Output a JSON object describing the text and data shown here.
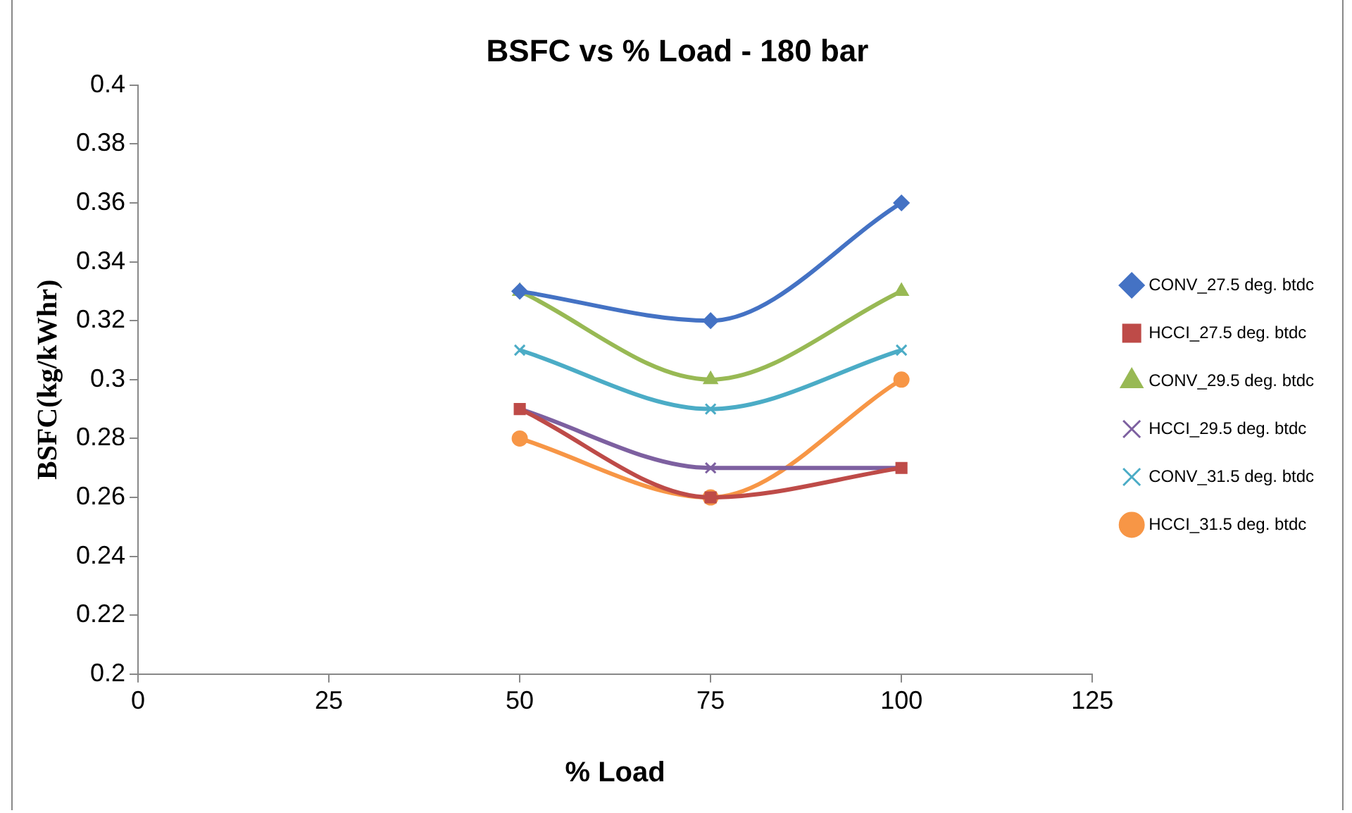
{
  "chart_data": {
    "type": "line",
    "title": "BSFC vs % Load - 180 bar",
    "xlabel": "% Load",
    "ylabel": "BSFC(kg/kWhr)",
    "x": [
      50,
      75,
      100
    ],
    "series": [
      {
        "name": "CONV_27.5 deg. btdc",
        "color": "#4472c4",
        "marker": "diamond",
        "values": [
          0.33,
          0.32,
          0.36
        ]
      },
      {
        "name": "HCCI_27.5 deg. btdc",
        "color": "#be4b48",
        "marker": "square",
        "values": [
          0.29,
          0.26,
          0.27
        ]
      },
      {
        "name": "CONV_29.5 deg. btdc",
        "color": "#98b954",
        "marker": "triangle",
        "values": [
          0.33,
          0.3,
          0.33
        ]
      },
      {
        "name": "HCCI_29.5 deg. btdc",
        "color": "#7d60a0",
        "marker": "cross",
        "values": [
          0.29,
          0.27,
          0.27
        ]
      },
      {
        "name": "CONV_31.5 deg. btdc",
        "color": "#4bacc6",
        "marker": "cross",
        "values": [
          0.31,
          0.29,
          0.31
        ]
      },
      {
        "name": "HCCI_31.5 deg. btdc",
        "color": "#f79646",
        "marker": "circle",
        "values": [
          0.28,
          0.26,
          0.3
        ]
      }
    ],
    "xlim": [
      0,
      125
    ],
    "xticks": [
      0,
      25,
      50,
      75,
      100,
      125
    ],
    "ylim": [
      0.2,
      0.4
    ],
    "yticks": [
      0.2,
      0.22,
      0.24,
      0.26,
      0.28,
      0.3,
      0.32,
      0.34,
      0.36,
      0.38,
      0.4
    ],
    "grid": false,
    "legend": "right",
    "line_style": "solid"
  }
}
